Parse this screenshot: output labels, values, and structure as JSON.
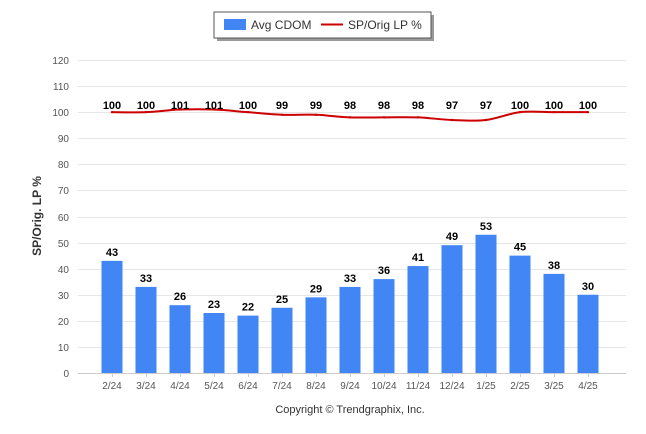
{
  "chart_data": {
    "type": "bar",
    "categories": [
      "2/24",
      "3/24",
      "4/24",
      "5/24",
      "6/24",
      "7/24",
      "8/24",
      "9/24",
      "10/24",
      "11/24",
      "12/24",
      "1/25",
      "2/25",
      "3/25",
      "4/25"
    ],
    "series": [
      {
        "name": "Avg CDOM",
        "type": "bar",
        "color": "#4285F4",
        "values": [
          43,
          33,
          26,
          23,
          22,
          25,
          29,
          33,
          36,
          41,
          49,
          53,
          45,
          38,
          30
        ]
      },
      {
        "name": "SP/Orig LP %",
        "type": "line",
        "color": "#CC0000",
        "values": [
          100,
          100,
          101,
          101,
          100,
          99,
          99,
          98,
          98,
          98,
          97,
          97,
          100,
          100,
          100
        ]
      }
    ],
    "ylabel": "SP/Orig. LP %",
    "ylim": [
      0,
      120
    ],
    "yticks": [
      0,
      10,
      20,
      30,
      40,
      50,
      60,
      70,
      80,
      90,
      100,
      110,
      120
    ],
    "grid": true,
    "legend_position": "top-center"
  },
  "footer": {
    "copyright": "Copyright © Trendgraphix, Inc."
  }
}
